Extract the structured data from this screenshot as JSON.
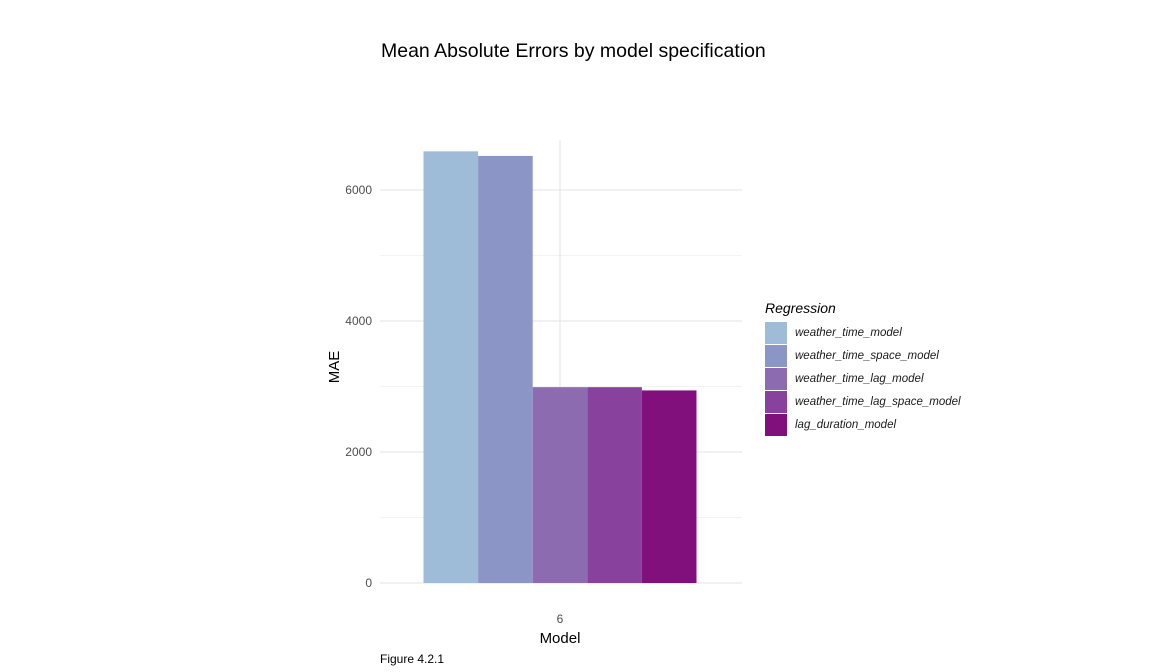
{
  "chart_data": {
    "type": "bar",
    "title": "Mean Absolute Errors by model specification",
    "xlabel": "Model",
    "ylabel": "MAE",
    "categories": [
      "6"
    ],
    "ylim": [
      0,
      6800
    ],
    "yticks": [
      0,
      2000,
      4000,
      6000
    ],
    "grid": true,
    "legend": {
      "title": "Regression",
      "position": "right"
    },
    "series": [
      {
        "name": "weather_time_model",
        "values": [
          6590
        ],
        "color": "#9EBBD7"
      },
      {
        "name": "weather_time_space_model",
        "values": [
          6520
        ],
        "color": "#8C96C6"
      },
      {
        "name": "weather_time_lag_model",
        "values": [
          2990
        ],
        "color": "#8C6BB1"
      },
      {
        "name": "weather_time_lag_space_model",
        "values": [
          2990
        ],
        "color": "#88419D"
      },
      {
        "name": "lag_duration_model",
        "values": [
          2940
        ],
        "color": "#810F7C"
      }
    ],
    "caption": "Figure 4.2.1"
  }
}
